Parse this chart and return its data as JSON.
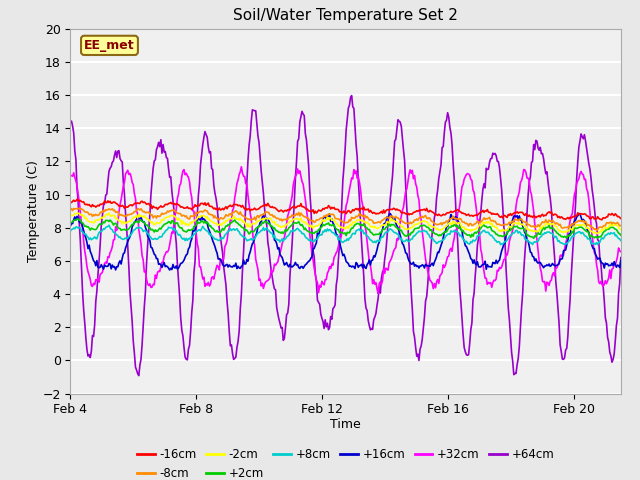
{
  "title": "Soil/Water Temperature Set 2",
  "xlabel": "Time",
  "ylabel": "Temperature (C)",
  "ylim": [
    -2,
    20
  ],
  "yticks": [
    -2,
    0,
    2,
    4,
    6,
    8,
    10,
    12,
    14,
    16,
    18,
    20
  ],
  "xlim_days": [
    0,
    17.5
  ],
  "xtick_positions": [
    0,
    4,
    8,
    12,
    16
  ],
  "xtick_labels": [
    "Feb 4",
    "Feb 8",
    "Feb 12",
    "Feb 16",
    "Feb 20"
  ],
  "annotation_text": "EE_met",
  "annotation_color": "#8B0000",
  "annotation_bg": "#FFFF99",
  "annotation_border": "#8B6914",
  "series": [
    {
      "label": "-16cm",
      "color": "#FF0000",
      "base": 9.5,
      "amp": 0.15,
      "trend": -0.05,
      "phase": 0.0,
      "noise": 0.05
    },
    {
      "label": "-8cm",
      "color": "#FF8C00",
      "base": 9.0,
      "amp": 0.2,
      "trend": -0.05,
      "phase": 0.1,
      "noise": 0.05
    },
    {
      "label": "-2cm",
      "color": "#FFFF00",
      "base": 8.6,
      "amp": 0.25,
      "trend": -0.04,
      "phase": 0.2,
      "noise": 0.05
    },
    {
      "label": "+2cm",
      "color": "#00CC00",
      "base": 8.2,
      "amp": 0.3,
      "trend": -0.03,
      "phase": 0.3,
      "noise": 0.05
    },
    {
      "label": "+8cm",
      "color": "#00CCCC",
      "base": 7.7,
      "amp": 0.35,
      "trend": -0.02,
      "phase": 0.4,
      "noise": 0.05
    },
    {
      "label": "+16cm",
      "color": "#0000CC",
      "base": 6.7,
      "amp": 1.2,
      "trend": 0.01,
      "phase": 1.0,
      "noise": 0.08
    },
    {
      "label": "+32cm",
      "color": "#FF00FF",
      "base": 7.5,
      "amp": 2.8,
      "trend": 0.01,
      "phase": 1.6,
      "noise": 0.1
    },
    {
      "label": "+64cm",
      "color": "#9900CC",
      "base": 7.5,
      "amp": 6.5,
      "trend": 0.0,
      "phase": 2.0,
      "noise": 0.15
    }
  ],
  "bg_color": "#E8E8E8",
  "plot_bg": "#F0F0F0",
  "grid_color": "#FFFFFF",
  "n_points": 500,
  "period": 1.0
}
